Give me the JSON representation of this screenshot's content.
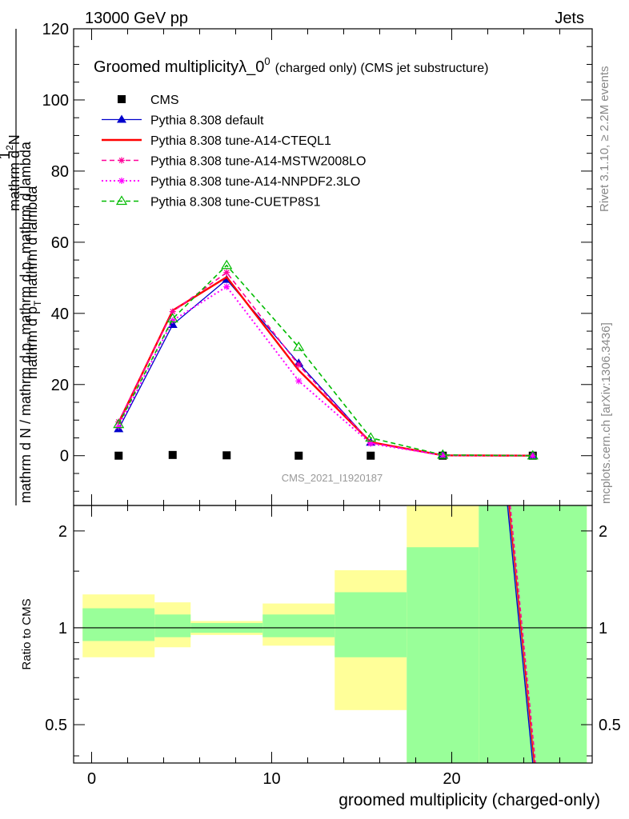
{
  "header": {
    "energy_label": "13000 GeV pp",
    "process_label": "Jets",
    "side_rivet": "Rivet 3.1.10, ≥ 2.2M events",
    "side_mcplots": "mcplots.cern.ch [arXiv:1306.3436]"
  },
  "chart_data": [
    {
      "type": "line",
      "title_main": "Groomed multiplicityλ_0",
      "title_sup": "0",
      "title_tail": "(charged only) (CMS jet substructure)",
      "analysis_label": "CMS_2021_I1920187",
      "ylabel_line1": "1",
      "ylabel_line2_part1": "mathrm d N / mathrm d p",
      "ylabel_line2_sub": "T",
      "ylabel_line2_part2": "mathrm d p",
      "ylabel_line2_sub2": "T",
      "ylabel_line2_part3": "mathrm d lambda",
      "ylabel_num": "mathrm d",
      "ylabel_num_sup": "2",
      "ylabel_num_tail": "N",
      "ylabel_num_line2": "mathrm d p",
      "ylabel_num_sub": "T",
      "ylabel_num_line2_tail": "mathrm d lambda",
      "xlim": [
        -1,
        27.8
      ],
      "ylim": [
        -14,
        120
      ],
      "y_ticks": [
        0,
        20,
        40,
        60,
        80,
        100,
        120
      ],
      "y_tick_labels": [
        "0",
        "20",
        "40",
        "60",
        "80",
        "100",
        "120"
      ],
      "x": [
        1.5,
        4.5,
        7.5,
        11.5,
        15.5,
        19.5,
        24.5
      ],
      "series": [
        {
          "name": "CMS",
          "color": "#000000",
          "marker": "square",
          "style": "none",
          "values": [
            0,
            0.2,
            0.1,
            0,
            0,
            0,
            0
          ]
        },
        {
          "name": "Pythia 8.308 default",
          "color": "#0000cc",
          "marker": "triangle-filled",
          "style": "solid",
          "values": [
            7.5,
            36.8,
            49.5,
            26.0,
            3.7,
            0.1,
            0.0
          ]
        },
        {
          "name": "Pythia 8.308 tune-A14-CTEQL1",
          "color": "#ff0000",
          "marker": "none",
          "style": "solid-thick",
          "values": [
            9.3,
            40.8,
            50.2,
            24.0,
            3.8,
            0.1,
            0.0
          ]
        },
        {
          "name": "Pythia 8.308 tune-A14-MSTW2008LO",
          "color": "#ff0099",
          "marker": "star",
          "style": "dashed",
          "values": [
            9.5,
            40.5,
            51.5,
            25.5,
            3.6,
            0.1,
            0.0
          ]
        },
        {
          "name": "Pythia 8.308 tune-A14-NNPDF2.3LO",
          "color": "#ff00ff",
          "marker": "star",
          "style": "dotted",
          "values": [
            8.2,
            38.0,
            47.5,
            21.0,
            3.4,
            0.1,
            0.0
          ]
        },
        {
          "name": "Pythia 8.308 tune-CUETP8S1",
          "color": "#00bb00",
          "marker": "triangle-open",
          "style": "dashed",
          "values": [
            8.8,
            38.5,
            53.5,
            30.5,
            5.0,
            0.2,
            0.0
          ]
        }
      ]
    },
    {
      "type": "line",
      "ylabel": "Ratio to CMS",
      "xlabel": "groomed multiplicity (charged-only)",
      "xlim": [
        -1,
        27.8
      ],
      "ylim": [
        0.38,
        2.4
      ],
      "log_y": true,
      "y_ticks": [
        0.5,
        1,
        2
      ],
      "y_tick_labels": [
        "0.5",
        "1",
        "2"
      ],
      "x_ticks": [
        0,
        10,
        20
      ],
      "x_tick_labels": [
        "0",
        "10",
        "20"
      ],
      "reference_line": 1,
      "bands": [
        {
          "x0": -0.5,
          "x1": 3.5,
          "yellow": [
            0.81,
            1.27
          ],
          "green": [
            0.91,
            1.15
          ]
        },
        {
          "x0": 3.5,
          "x1": 5.5,
          "yellow": [
            0.87,
            1.2
          ],
          "green": [
            0.935,
            1.1
          ]
        },
        {
          "x0": 5.5,
          "x1": 9.5,
          "yellow": [
            0.95,
            1.05
          ],
          "green": [
            0.965,
            1.035
          ]
        },
        {
          "x0": 9.5,
          "x1": 13.5,
          "yellow": [
            0.88,
            1.19
          ],
          "green": [
            0.935,
            1.1
          ]
        },
        {
          "x0": 13.5,
          "x1": 17.5,
          "yellow": [
            0.555,
            1.51
          ],
          "green": [
            0.81,
            1.29
          ]
        },
        {
          "x0": 17.5,
          "x1": 21.5,
          "yellow": [
            0.38,
            2.4
          ],
          "green": [
            0.38,
            1.78
          ]
        },
        {
          "x0": 21.5,
          "x1": 27.5,
          "yellow": [
            0.38,
            2.4
          ],
          "green": [
            0.38,
            2.4
          ]
        }
      ],
      "ratio_line": {
        "x": [
          23.1,
          24.5
        ],
        "y": [
          2.4,
          0.38
        ]
      }
    }
  ]
}
